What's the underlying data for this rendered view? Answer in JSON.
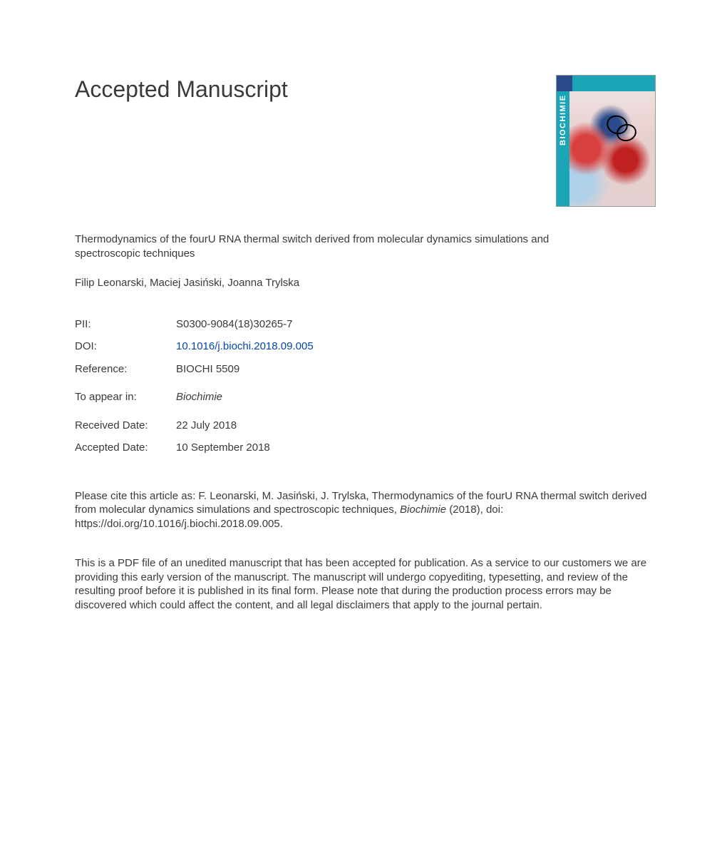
{
  "heading": "Accepted Manuscript",
  "cover": {
    "spine_text": "BIOCHIMIE"
  },
  "title": "Thermodynamics of the fourU RNA thermal switch derived from molecular dynamics simulations and spectroscopic techniques",
  "authors": "Filip Leonarski, Maciej Jasiński, Joanna Trylska",
  "meta": {
    "pii_label": "PII:",
    "pii_value": "S0300-9084(18)30265-7",
    "doi_label": "DOI:",
    "doi_value": "10.1016/j.biochi.2018.09.005",
    "ref_label": "Reference:",
    "ref_value": "BIOCHI 5509",
    "appear_label": "To appear in:",
    "appear_value": "Biochimie",
    "received_label": "Received Date:",
    "received_value": "22 July 2018",
    "accepted_label": "Accepted Date:",
    "accepted_value": "10 September 2018"
  },
  "citation": {
    "prefix": "Please cite this article as: F. Leonarski, M. Jasiński, J. Trylska, Thermodynamics of the fourU RNA thermal switch derived from molecular dynamics simulations and spectroscopic techniques, ",
    "journal": "Biochimie",
    "suffix": " (2018), doi: https://doi.org/10.1016/j.biochi.2018.09.005."
  },
  "disclaimer": "This is a PDF file of an unedited manuscript that has been accepted for publication. As a service to our customers we are providing this early version of the manuscript. The manuscript will undergo copyediting, typesetting, and review of the resulting proof before it is published in its final form. Please note that during the production process errors may be discovered which could affect the content, and all legal disclaimers that apply to the journal pertain.",
  "colors": {
    "text": "#3a3a3a",
    "link": "#0645ad",
    "cover_accent": "#1aa6b7",
    "cover_logo": "#2a4a8a"
  }
}
